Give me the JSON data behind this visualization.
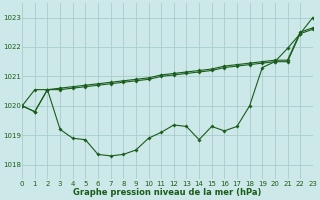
{
  "title": "Graphe pression niveau de la mer (hPa)",
  "bg_color": "#cce8e8",
  "grid_color": "#a8cccc",
  "line_color": "#1a5c1a",
  "xlim": [
    0,
    23
  ],
  "ylim": [
    1017.5,
    1023.5
  ],
  "yticks": [
    1018,
    1019,
    1020,
    1021,
    1022,
    1023
  ],
  "xticks": [
    0,
    1,
    2,
    3,
    4,
    5,
    6,
    7,
    8,
    9,
    10,
    11,
    12,
    13,
    14,
    15,
    16,
    17,
    18,
    19,
    20,
    21,
    22,
    23
  ],
  "series": [
    [
      1020.0,
      1019.8,
      1020.55,
      1019.2,
      1018.9,
      1018.85,
      1018.35,
      1018.3,
      1018.35,
      1018.5,
      1018.9,
      1019.1,
      1019.35,
      1019.3,
      1018.85,
      1019.3,
      1019.15,
      1019.3,
      1020.0,
      1021.3,
      1021.5,
      1021.95,
      1022.45,
      1023.0
    ],
    [
      1020.0,
      1019.8,
      1020.55,
      1020.55,
      1020.6,
      1020.65,
      1020.7,
      1020.75,
      1020.8,
      1020.85,
      1020.9,
      1021.0,
      1021.05,
      1021.1,
      1021.15,
      1021.2,
      1021.3,
      1021.35,
      1021.4,
      1021.45,
      1021.5,
      1021.5,
      1022.45,
      1022.6
    ],
    [
      1020.0,
      1020.55,
      1020.55,
      1020.6,
      1020.65,
      1020.7,
      1020.75,
      1020.8,
      1020.85,
      1020.9,
      1020.95,
      1021.05,
      1021.1,
      1021.15,
      1021.2,
      1021.25,
      1021.35,
      1021.4,
      1021.45,
      1021.5,
      1021.55,
      1021.55,
      1022.5,
      1022.65
    ]
  ],
  "figsize": [
    3.2,
    2.0
  ],
  "dpi": 100,
  "title_fontsize": 6.0,
  "tick_labelsize": 5.0,
  "linewidth": 0.8,
  "markersize": 1.8
}
